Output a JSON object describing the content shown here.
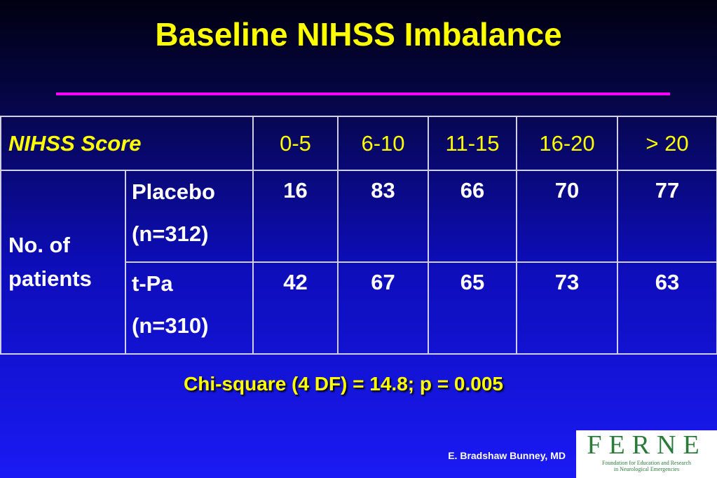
{
  "title": "Baseline NIHSS Imbalance",
  "table": {
    "header": [
      "NIHSS Score",
      "0-5",
      "6-10",
      "11-15",
      "16-20",
      "> 20"
    ],
    "row_group": "No. of patients",
    "rows": [
      {
        "label": [
          "Placebo",
          "(n=312)"
        ],
        "cells": [
          16,
          83,
          66,
          70,
          77
        ]
      },
      {
        "label": [
          "t-Pa",
          "(n=310)"
        ],
        "cells": [
          42,
          67,
          65,
          73,
          63
        ]
      }
    ]
  },
  "footnote": "Chi-square (4 DF) = 14.8; p = 0.005",
  "author": "E. Bradshaw Bunney, MD",
  "logo": {
    "letters": "FERNE",
    "tagline": [
      "Foundation for Education and Research",
      "in Neurological Emergencies"
    ]
  }
}
